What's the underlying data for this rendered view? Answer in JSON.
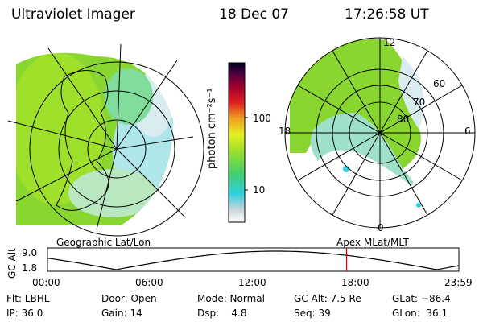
{
  "header": {
    "instrument": "Ultraviolet Imager",
    "date": "18 Dec 07",
    "time": "17:26:58 UT"
  },
  "colorbar": {
    "unit_label": "photon cm⁻²s⁻¹",
    "ticks": [
      "100",
      "10"
    ]
  },
  "polar_plot": {
    "labels": {
      "top": "12",
      "bottom": "0",
      "left": "18",
      "right": "6"
    },
    "lat_labels": [
      "60",
      "70",
      "80"
    ]
  },
  "timeline": {
    "left_label": "Geographic Lat/Lon",
    "right_label": "Apex MLat/MLT",
    "axis_label": "GC Alt",
    "y_ticks": [
      "9.0",
      "1.8"
    ],
    "x_ticks": [
      "00:00",
      "06:00",
      "12:00",
      "18:00",
      "23:59"
    ],
    "marker_time": 17.45,
    "marker_color": "#e00000"
  },
  "status": {
    "filter": "Flt: LBHL",
    "ip": "IP: 36.0",
    "door": "Door: Open",
    "gain": "Gain: 14",
    "mode": "Mode: Normal",
    "dsp": "Dsp:    4.8",
    "gc_alt": "GC Alt: 7.5 Re",
    "seq": "Seq: 39",
    "glat": "GLat: −86.4",
    "glon": "GLon:  36.1"
  }
}
